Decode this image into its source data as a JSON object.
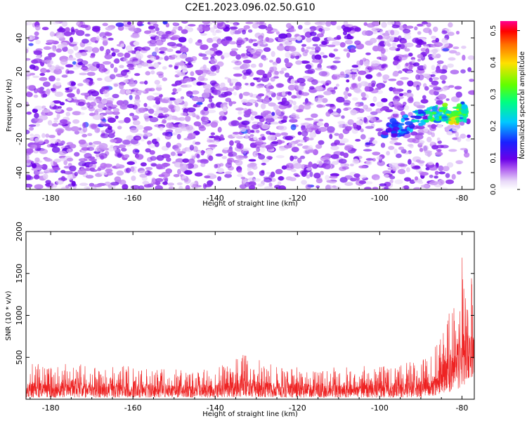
{
  "title": "C2E1.2023.096.02.50.G10",
  "chart_data": [
    {
      "type": "heatmap",
      "xlabel": "Height of straight line (km)",
      "ylabel": "Frequency (Hz)",
      "xlim": [
        -186,
        -77
      ],
      "ylim": [
        -50,
        50
      ],
      "xticks": [
        -180,
        -160,
        -140,
        -120,
        -100,
        -80
      ],
      "yticks": [
        -40,
        -20,
        0,
        20,
        40
      ],
      "colorbar": {
        "label": "Normalized spectral amplitude",
        "range": [
          0.0,
          0.53
        ],
        "ticks": [
          0.0,
          0.1,
          0.2,
          0.3,
          0.4,
          0.5
        ],
        "tick_labels": [
          "0.0",
          "0.1",
          "0.2",
          "0.3",
          "0.4",
          "0.5"
        ],
        "colormap": "white-purple-blue-cyan-green-yellow-red-magenta"
      },
      "background_level": 0.05,
      "signal_trace": {
        "description_points": [
          {
            "x": -98,
            "y": -15,
            "amplitude": 0.15
          },
          {
            "x": -95,
            "y": -13,
            "amplitude": 0.18
          },
          {
            "x": -90,
            "y": -7,
            "amplitude": 0.22
          },
          {
            "x": -86,
            "y": -5,
            "amplitude": 0.28
          },
          {
            "x": -84,
            "y": -4,
            "amplitude": 0.3
          },
          {
            "x": -82,
            "y": -8,
            "amplitude": 0.45
          },
          {
            "x": -80,
            "y": -3,
            "amplitude": 0.25
          },
          {
            "x": -79,
            "y": -5,
            "amplitude": 0.28
          }
        ]
      },
      "grid": false
    },
    {
      "type": "line",
      "xlabel": "Height of straight line (km)",
      "ylabel": "SNR (10 * v/v)",
      "xlim": [
        -186,
        -77
      ],
      "ylim": [
        0,
        2000
      ],
      "xticks": [
        -180,
        -160,
        -140,
        -120,
        -100,
        -80
      ],
      "yticks": [
        500,
        1000,
        1500,
        2000
      ],
      "series": [
        {
          "color": "#ee2222",
          "envelope": [
            {
              "x": -186,
              "low": 20,
              "high": 420
            },
            {
              "x": -170,
              "low": 20,
              "high": 420
            },
            {
              "x": -150,
              "low": 20,
              "high": 360
            },
            {
              "x": -140,
              "low": 20,
              "high": 370
            },
            {
              "x": -133,
              "low": 30,
              "high": 540
            },
            {
              "x": -125,
              "low": 20,
              "high": 400
            },
            {
              "x": -110,
              "low": 20,
              "high": 380
            },
            {
              "x": -95,
              "low": 20,
              "high": 420
            },
            {
              "x": -88,
              "low": 30,
              "high": 500
            },
            {
              "x": -85,
              "low": 60,
              "high": 800
            },
            {
              "x": -82,
              "low": 100,
              "high": 1200
            },
            {
              "x": -80,
              "low": 150,
              "high": 1780
            },
            {
              "x": -78,
              "low": 200,
              "high": 1450
            }
          ]
        }
      ],
      "grid": false
    }
  ]
}
